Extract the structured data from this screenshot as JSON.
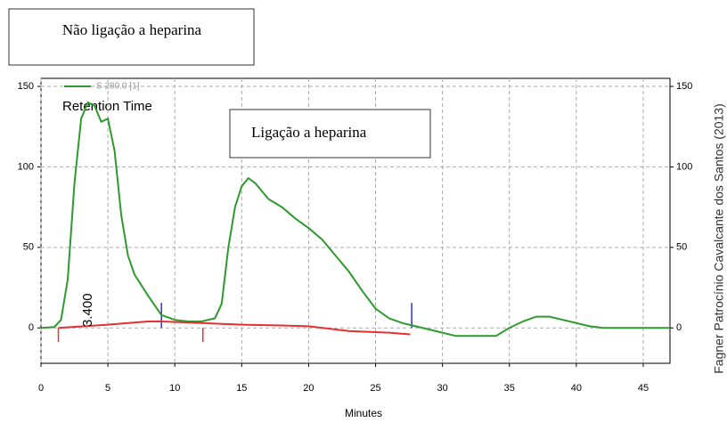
{
  "chart_data": {
    "type": "line",
    "annotations": {
      "box1": "Não ligação a heparina",
      "box2": "Ligação a heparina",
      "retention": "Retention Time",
      "peak": "3.400",
      "credit": "Fagner  Patrocínio Cavalcante dos  Santos (2013)"
    },
    "xlabel": "Minutes",
    "xlim": [
      0,
      47
    ],
    "xticks": [
      0,
      5,
      10,
      15,
      20,
      25,
      30,
      35,
      40,
      45
    ],
    "ylim": [
      -22,
      155
    ],
    "yticks": [
      0,
      50,
      100,
      150
    ],
    "y2lim": [
      -22,
      155
    ],
    "y2ticks": [
      0,
      50,
      100,
      150
    ],
    "grid": true,
    "legend": "top-left",
    "series": [
      {
        "name": "S 280.0 [1]",
        "color": "#2e9a2e",
        "x": [
          0,
          1,
          1.5,
          2,
          2.5,
          3,
          3.5,
          4,
          4.5,
          5,
          5.5,
          6,
          6.5,
          7,
          8,
          9,
          10,
          11,
          12,
          13,
          13.5,
          14,
          14.5,
          15,
          15.5,
          16,
          17,
          18,
          19,
          20,
          21,
          22,
          23,
          24,
          25,
          26,
          27,
          28,
          29,
          30,
          31,
          32,
          33,
          34,
          35,
          36,
          37,
          38,
          39,
          40,
          41,
          42,
          45,
          47
        ],
        "values": [
          0,
          0.5,
          5,
          30,
          90,
          130,
          140,
          138,
          128,
          130,
          110,
          70,
          45,
          33,
          20,
          8,
          5,
          4,
          4,
          6,
          15,
          50,
          75,
          88,
          93,
          90,
          80,
          75,
          68,
          62,
          55,
          45,
          35,
          23,
          12,
          6,
          3,
          1,
          -1,
          -3,
          -5,
          -5,
          -5,
          -5,
          0,
          4,
          7,
          7,
          5,
          3,
          1,
          0,
          0,
          0
        ]
      },
      {
        "color": "#e53030",
        "x": [
          1.3,
          5,
          8,
          9,
          12,
          15,
          18,
          20,
          23,
          26,
          27.6
        ],
        "values": [
          0,
          2,
          4,
          4,
          3,
          2,
          1.5,
          1,
          -2,
          -3,
          -4
        ]
      }
    ],
    "events": [
      {
        "x": 1.3,
        "color": "#e53030"
      },
      {
        "x": 12.1,
        "color": "#e53030"
      },
      {
        "x": 9,
        "color": "#3030d0"
      },
      {
        "x": 27.7,
        "color": "#3030d0"
      }
    ]
  }
}
